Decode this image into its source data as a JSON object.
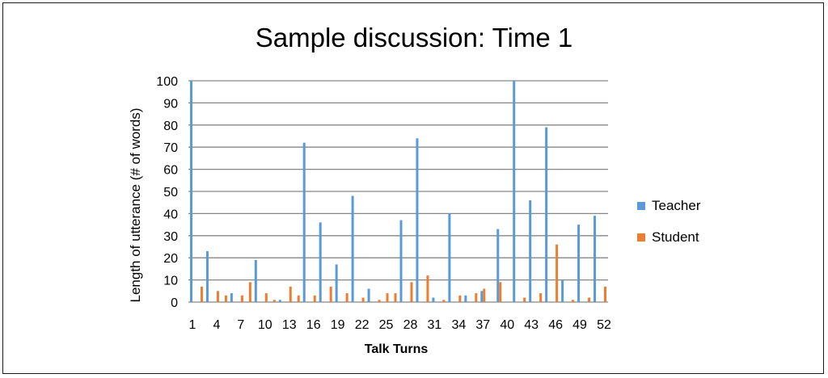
{
  "chart_data": {
    "type": "bar",
    "title": "Sample discussion: Time 1",
    "xlabel": "Talk Turns",
    "ylabel": "Length of utterance (# of words)",
    "ylim": [
      0,
      100
    ],
    "yticks": [
      0,
      10,
      20,
      30,
      40,
      50,
      60,
      70,
      80,
      90,
      100
    ],
    "x_tick_labels": [
      "1",
      "4",
      "7",
      "10",
      "13",
      "16",
      "19",
      "22",
      "25",
      "28",
      "31",
      "34",
      "37",
      "40",
      "43",
      "46",
      "49",
      "52"
    ],
    "grid": true,
    "legend_position": "right",
    "categories": [
      "1",
      "2",
      "3",
      "4",
      "5",
      "6",
      "7",
      "8",
      "9",
      "10",
      "11",
      "12",
      "13",
      "14",
      "15",
      "16",
      "17",
      "18",
      "19",
      "20",
      "21",
      "22",
      "23",
      "24",
      "25",
      "26",
      "27",
      "28",
      "29",
      "30",
      "31",
      "32",
      "33",
      "34",
      "35",
      "36",
      "37",
      "38",
      "39",
      "40",
      "41",
      "42",
      "43",
      "44",
      "45",
      "46",
      "47",
      "48",
      "49",
      "50",
      "51",
      "52"
    ],
    "series": [
      {
        "name": "Teacher",
        "color": "#5b9bd5",
        "values": [
          100,
          0,
          23,
          0,
          0,
          4,
          0,
          0,
          19,
          0,
          0,
          1,
          0,
          0,
          72,
          0,
          36,
          0,
          17,
          0,
          48,
          0,
          6,
          0,
          0,
          0,
          37,
          0,
          74,
          0,
          2,
          0,
          40,
          0,
          3,
          0,
          5,
          0,
          33,
          0,
          100,
          0,
          46,
          0,
          79,
          0,
          10,
          0,
          35,
          0,
          39,
          0
        ]
      },
      {
        "name": "Student",
        "color": "#ed7d31",
        "values": [
          0,
          7,
          0,
          5,
          3,
          0,
          3,
          9,
          0,
          4,
          1,
          0,
          7,
          3,
          0,
          3,
          0,
          7,
          0,
          4,
          0,
          2,
          0,
          1,
          4,
          4,
          0,
          9,
          0,
          12,
          0,
          1,
          0,
          3,
          0,
          4,
          6,
          0,
          9,
          0,
          0,
          2,
          0,
          4,
          0,
          26,
          0,
          1,
          0,
          2,
          0,
          7
        ]
      }
    ]
  }
}
